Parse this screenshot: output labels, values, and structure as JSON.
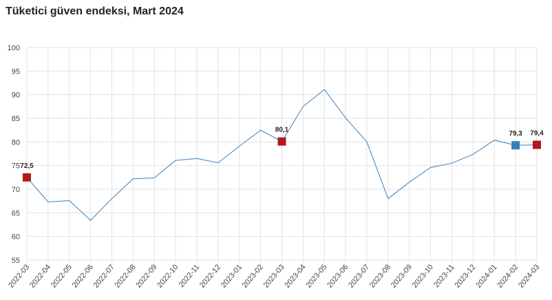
{
  "chart_data": {
    "type": "line",
    "title": "Tüketici güven endeksi, Mart 2024",
    "xlabel": "",
    "ylabel": "",
    "ylim": [
      55,
      100
    ],
    "yticks": [
      55,
      60,
      65,
      70,
      75,
      80,
      85,
      90,
      95,
      100
    ],
    "grid": true,
    "categories": [
      "2022-03",
      "2022-04",
      "2022-05",
      "2022-06",
      "2022-07",
      "2022-08",
      "2022-09",
      "2022-10",
      "2022-11",
      "2022-12",
      "2023-01",
      "2023-02",
      "2023-03",
      "2023-04",
      "2023-05",
      "2023-06",
      "2023-07",
      "2023-08",
      "2023-09",
      "2023-10",
      "2023-11",
      "2023-12",
      "2024-01",
      "2024-02",
      "2024-03"
    ],
    "series": [
      {
        "values": [
          72.5,
          67.3,
          67.6,
          63.4,
          68.0,
          72.2,
          72.4,
          76.1,
          76.5,
          75.6,
          79.1,
          82.5,
          80.1,
          87.5,
          91.1,
          85.1,
          80.0,
          68.0,
          71.5,
          74.6,
          75.5,
          77.4,
          80.4,
          79.3,
          79.4
        ],
        "color": "#3a7fb8"
      }
    ],
    "markers": [
      {
        "index": 0,
        "label": "72,5",
        "color": "#b0191e"
      },
      {
        "index": 12,
        "label": "80,1",
        "color": "#b0191e"
      },
      {
        "index": 23,
        "label": "79,3",
        "color": "#3182bd"
      },
      {
        "index": 24,
        "label": "79,4",
        "color": "#b0191e"
      }
    ],
    "gridColor": "#e2e2e2"
  }
}
